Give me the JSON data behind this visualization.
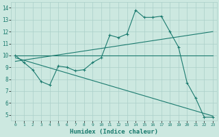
{
  "title": "",
  "xlabel": "Humidex (Indice chaleur)",
  "xlim": [
    -0.5,
    23.5
  ],
  "ylim": [
    4.5,
    14.5
  ],
  "yticks": [
    5,
    6,
    7,
    8,
    9,
    10,
    11,
    12,
    13,
    14
  ],
  "xticks": [
    0,
    1,
    2,
    3,
    4,
    5,
    6,
    7,
    8,
    9,
    10,
    11,
    12,
    13,
    14,
    15,
    16,
    17,
    18,
    19,
    20,
    21,
    22,
    23
  ],
  "bg_color": "#cce8e0",
  "line_color": "#1a7a6e",
  "grid_color": "#aacfc8",
  "line1_x": [
    0,
    1,
    2,
    3,
    4,
    5,
    6,
    7,
    8,
    9,
    10,
    11,
    12,
    13,
    14,
    15,
    16,
    17,
    18,
    19,
    20,
    21,
    22,
    23
  ],
  "line1_y": [
    10.0,
    9.4,
    8.8,
    7.8,
    7.5,
    9.1,
    9.0,
    8.7,
    8.8,
    9.4,
    9.8,
    11.7,
    11.5,
    11.8,
    13.8,
    13.2,
    13.2,
    13.3,
    12.0,
    10.7,
    7.7,
    6.4,
    4.8,
    4.8
  ],
  "line2_x": [
    0,
    23
  ],
  "line2_y": [
    10.0,
    10.0
  ],
  "line3_x": [
    0,
    23
  ],
  "line3_y": [
    9.5,
    12.0
  ],
  "line4_x": [
    0,
    23
  ],
  "line4_y": [
    9.8,
    4.9
  ]
}
